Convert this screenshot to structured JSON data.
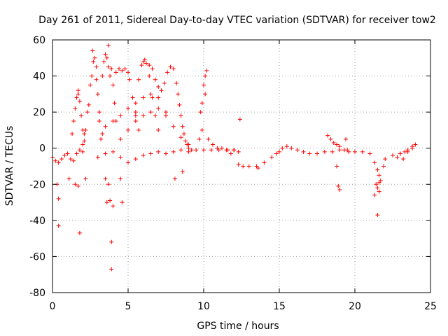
{
  "chart_data": {
    "type": "scatter",
    "title": "Day 261 of 2011, Sidereal Day-to-day VTEC variation (SDTVAR) for receiver tow2",
    "xlabel": "GPS time / hours",
    "ylabel": "SDTVAR / TECUs",
    "xlim": [
      0,
      25
    ],
    "ylim": [
      -80,
      60
    ],
    "xticks": [
      0,
      5,
      10,
      15,
      20,
      25
    ],
    "yticks": [
      -80,
      -60,
      -40,
      -20,
      0,
      20,
      40,
      60
    ],
    "grid": true,
    "marker": "+",
    "color": "#ff0000",
    "series": [
      {
        "name": "SDTVAR",
        "points": [
          [
            0.0,
            -5
          ],
          [
            0.2,
            -7
          ],
          [
            0.4,
            -8
          ],
          [
            0.6,
            -6
          ],
          [
            0.8,
            -4
          ],
          [
            1.0,
            -3
          ],
          [
            1.2,
            -6
          ],
          [
            1.4,
            -7
          ],
          [
            1.6,
            -3
          ],
          [
            1.8,
            -1
          ],
          [
            2.0,
            2
          ],
          [
            2.2,
            10
          ],
          [
            2.4,
            24
          ],
          [
            2.6,
            40
          ],
          [
            2.7,
            48
          ],
          [
            2.8,
            50
          ],
          [
            2.9,
            45
          ],
          [
            3.0,
            30
          ],
          [
            3.1,
            15
          ],
          [
            3.2,
            5
          ],
          [
            2.0,
            -2
          ],
          [
            2.1,
            8
          ],
          [
            2.3,
            20
          ],
          [
            2.5,
            35
          ],
          [
            2.65,
            54
          ],
          [
            2.9,
            38
          ],
          [
            3.1,
            20
          ],
          [
            3.3,
            8
          ],
          [
            3.3,
            40
          ],
          [
            3.4,
            48
          ],
          [
            3.5,
            52
          ],
          [
            3.6,
            50
          ],
          [
            3.7,
            45
          ],
          [
            3.8,
            40
          ],
          [
            3.9,
            44
          ],
          [
            4.0,
            35
          ],
          [
            4.1,
            25
          ],
          [
            4.2,
            15
          ],
          [
            1.3,
            8
          ],
          [
            1.4,
            15
          ],
          [
            1.5,
            22
          ],
          [
            1.6,
            28
          ],
          [
            1.7,
            30
          ],
          [
            1.8,
            26
          ],
          [
            1.9,
            18
          ],
          [
            2.0,
            10
          ],
          [
            2.1,
            4
          ],
          [
            4.2,
            42
          ],
          [
            4.4,
            44
          ],
          [
            4.6,
            43
          ],
          [
            4.8,
            44
          ],
          [
            5.0,
            42
          ],
          [
            5.1,
            38
          ],
          [
            5.3,
            28
          ],
          [
            5.5,
            18
          ],
          [
            5.7,
            10
          ],
          [
            5.5,
            20
          ],
          [
            5.7,
            38
          ],
          [
            5.9,
            46
          ],
          [
            6.0,
            48
          ],
          [
            6.1,
            49
          ],
          [
            6.2,
            47
          ],
          [
            6.4,
            40
          ],
          [
            6.6,
            28
          ],
          [
            6.8,
            18
          ],
          [
            7.0,
            10
          ],
          [
            6.4,
            46
          ],
          [
            6.6,
            44
          ],
          [
            6.8,
            38
          ],
          [
            7.0,
            34
          ],
          [
            7.2,
            32
          ],
          [
            7.4,
            36
          ],
          [
            7.6,
            42
          ],
          [
            7.8,
            45
          ],
          [
            8.0,
            44
          ],
          [
            8.2,
            36
          ],
          [
            8.3,
            30
          ],
          [
            8.4,
            24
          ],
          [
            8.5,
            18
          ],
          [
            8.6,
            12
          ],
          [
            8.7,
            8
          ],
          [
            8.8,
            4
          ],
          [
            8.9,
            2
          ],
          [
            9.0,
            0
          ],
          [
            9.2,
            -1
          ],
          [
            4.5,
            5
          ],
          [
            5.0,
            10
          ],
          [
            5.5,
            15
          ],
          [
            6.0,
            18
          ],
          [
            6.5,
            20
          ],
          [
            7.0,
            22
          ],
          [
            7.5,
            18
          ],
          [
            8.0,
            12
          ],
          [
            8.5,
            6
          ],
          [
            9.0,
            2
          ],
          [
            3.5,
            12
          ],
          [
            4.0,
            15
          ],
          [
            4.5,
            18
          ],
          [
            5.0,
            22
          ],
          [
            5.5,
            25
          ],
          [
            6.0,
            28
          ],
          [
            6.5,
            30
          ],
          [
            7.0,
            28
          ],
          [
            7.5,
            20
          ],
          [
            3.0,
            -5
          ],
          [
            3.5,
            -3
          ],
          [
            4.0,
            -2
          ],
          [
            4.5,
            -5
          ],
          [
            5.0,
            -8
          ],
          [
            5.5,
            -6
          ],
          [
            6.0,
            -4
          ],
          [
            6.5,
            -3
          ],
          [
            7.0,
            -2
          ],
          [
            7.5,
            -3
          ],
          [
            8.0,
            -2
          ],
          [
            8.5,
            -1
          ],
          [
            9.0,
            -2
          ],
          [
            9.5,
            -1
          ],
          [
            10.0,
            -1
          ],
          [
            10.5,
            -1
          ],
          [
            11.0,
            -1
          ],
          [
            11.5,
            -1
          ],
          [
            12.0,
            -1
          ],
          [
            9.8,
            20
          ],
          [
            9.9,
            25
          ],
          [
            10.0,
            35
          ],
          [
            10.1,
            40
          ],
          [
            10.2,
            43
          ],
          [
            10.1,
            30
          ],
          [
            9.9,
            10
          ],
          [
            9.7,
            5
          ],
          [
            10.3,
            5
          ],
          [
            10.6,
            2
          ],
          [
            10.9,
            0
          ],
          [
            11.2,
            0
          ],
          [
            11.6,
            -1
          ],
          [
            12.0,
            -1
          ],
          [
            12.3,
            -2
          ],
          [
            12.4,
            16
          ],
          [
            12.3,
            -9
          ],
          [
            12.6,
            -10
          ],
          [
            13.0,
            -10
          ],
          [
            13.5,
            -10
          ],
          [
            14.0,
            -8
          ],
          [
            14.5,
            -5
          ],
          [
            15.0,
            -2
          ],
          [
            15.2,
            0
          ],
          [
            15.5,
            1
          ],
          [
            15.8,
            0
          ],
          [
            16.2,
            -1
          ],
          [
            16.6,
            -2
          ],
          [
            17.0,
            -3
          ],
          [
            17.5,
            -3
          ],
          [
            18.0,
            -2
          ],
          [
            18.5,
            -2
          ],
          [
            19.0,
            -1
          ],
          [
            19.5,
            -1
          ],
          [
            20.0,
            -2
          ],
          [
            20.5,
            -2
          ],
          [
            21.0,
            -3
          ],
          [
            21.3,
            -8
          ],
          [
            21.5,
            -12
          ],
          [
            21.6,
            -15
          ],
          [
            21.7,
            -18
          ],
          [
            21.9,
            -10
          ],
          [
            22.0,
            -6
          ],
          [
            22.5,
            -4
          ],
          [
            23.0,
            -3
          ],
          [
            23.3,
            -2
          ],
          [
            23.5,
            -1
          ],
          [
            23.8,
            1
          ],
          [
            24.0,
            2
          ],
          [
            18.2,
            7
          ],
          [
            18.4,
            5
          ],
          [
            18.6,
            3
          ],
          [
            18.8,
            2
          ],
          [
            19.0,
            1
          ],
          [
            19.3,
            -1
          ],
          [
            19.6,
            -2
          ],
          [
            21.4,
            -20
          ],
          [
            21.5,
            -22
          ],
          [
            21.6,
            -19
          ],
          [
            21.5,
            -37
          ],
          [
            21.3,
            -26
          ],
          [
            21.6,
            -24
          ],
          [
            19.0,
            -23
          ],
          [
            18.9,
            -21
          ],
          [
            18.8,
            -10
          ],
          [
            19.4,
            5
          ],
          [
            22.8,
            -5
          ],
          [
            23.0,
            -3
          ],
          [
            23.2,
            -6
          ],
          [
            23.5,
            -2
          ],
          [
            23.8,
            0
          ],
          [
            0.4,
            -43
          ],
          [
            0.4,
            -28
          ],
          [
            0.3,
            -20
          ],
          [
            1.8,
            -47
          ],
          [
            1.7,
            -21
          ],
          [
            3.9,
            -52
          ],
          [
            3.9,
            -67
          ],
          [
            3.6,
            -30
          ],
          [
            4.0,
            -32
          ],
          [
            3.8,
            -29
          ],
          [
            4.6,
            -30
          ],
          [
            4.5,
            -17
          ],
          [
            3.7,
            -20
          ],
          [
            3.5,
            -17
          ],
          [
            1.5,
            -20
          ],
          [
            1.1,
            -17
          ],
          [
            2.2,
            -17
          ],
          [
            3.7,
            57
          ],
          [
            1.7,
            32
          ],
          [
            8.1,
            -17
          ],
          [
            8.6,
            -13
          ],
          [
            11.8,
            -3
          ],
          [
            13.6,
            -11
          ],
          [
            14.8,
            -3
          ]
        ]
      }
    ]
  }
}
